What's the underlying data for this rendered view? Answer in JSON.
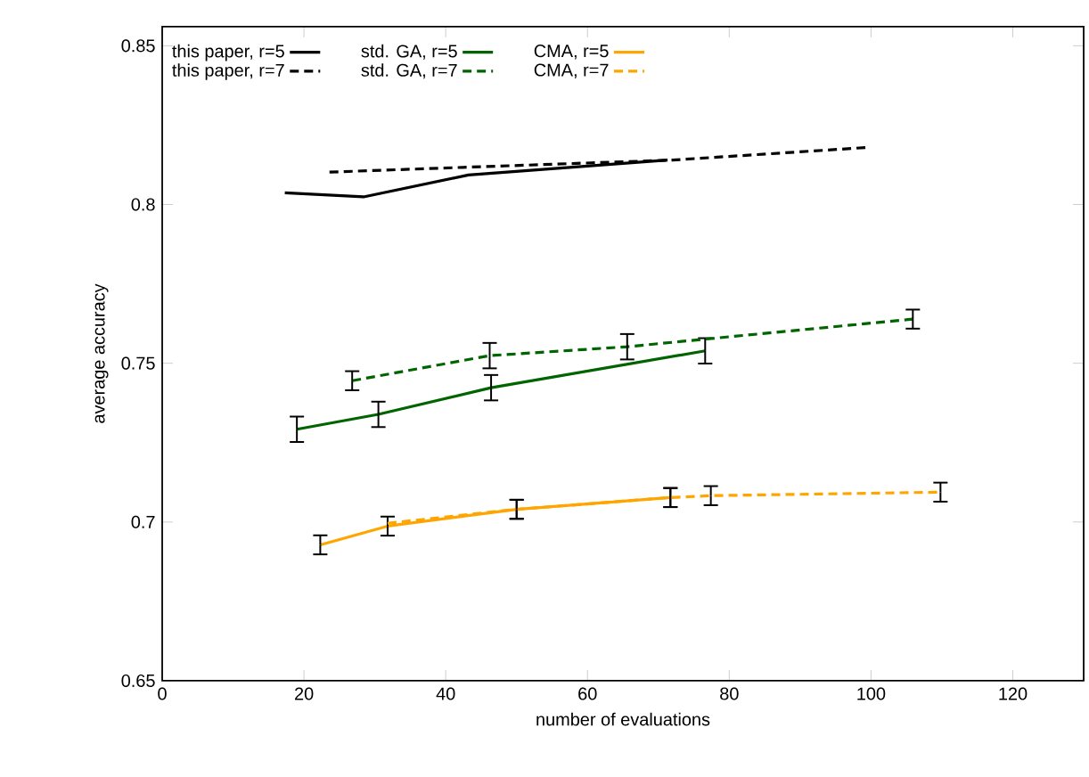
{
  "chart_data": {
    "type": "line",
    "xlabel": "number of evaluations",
    "ylabel": "average accuracy",
    "xlim": [
      0,
      130
    ],
    "ylim": [
      0.65,
      0.856
    ],
    "xticks": [
      0,
      20,
      40,
      60,
      80,
      100,
      120
    ],
    "yticks": [
      0.65,
      0.7,
      0.75,
      0.8,
      0.85
    ],
    "legend": "top left",
    "marker": "none",
    "grid": false,
    "series": [
      {
        "name": "this paper, r=5",
        "color": "#000000",
        "line_style": "solid",
        "x": [
          17.3,
          28.4,
          43.2,
          71.3
        ],
        "values": [
          0.8037,
          0.8024,
          0.8093,
          0.814
        ]
      },
      {
        "name": "std. GA, r=5",
        "color": "#006400",
        "line_style": "solid",
        "x": [
          19.0,
          30.5,
          46.4,
          76.6
        ],
        "values": [
          0.7292,
          0.7339,
          0.7423,
          0.7539
        ],
        "errors": [
          0.004,
          0.004,
          0.004,
          0.004
        ]
      },
      {
        "name": "CMA, r=5",
        "color": "#ffa500",
        "line_style": "solid",
        "x": [
          22.3,
          31.8,
          50.0,
          71.7
        ],
        "values": [
          0.6928,
          0.6987,
          0.704,
          0.7077
        ],
        "errors": [
          0.003,
          0.003,
          0.003,
          0.003
        ]
      },
      {
        "name": "this paper, r=7",
        "color": "#000000",
        "line_style": "dashed",
        "x": [
          23.6,
          42.4,
          72,
          99.7
        ],
        "values": [
          0.8102,
          0.8117,
          0.814,
          0.818
        ]
      },
      {
        "name": "std. GA, r=7",
        "color": "#006400",
        "line_style": "dashed",
        "x": [
          26.8,
          46.2,
          65.6,
          76.6,
          105.9
        ],
        "values": [
          0.7445,
          0.7524,
          0.7552,
          0.7576,
          0.7639
        ],
        "errors": [
          0.003,
          0.004,
          0.004,
          null,
          0.003
        ]
      },
      {
        "name": "CMA, r=7",
        "color": "#ffa500",
        "line_style": "dashed",
        "x": [
          31.8,
          50.0,
          71.7,
          77.4,
          109.8
        ],
        "values": [
          0.6996,
          0.704,
          0.7077,
          0.7083,
          0.7094
        ],
        "errors": [
          null,
          0.003,
          0.003,
          0.003,
          0.003
        ]
      }
    ]
  }
}
